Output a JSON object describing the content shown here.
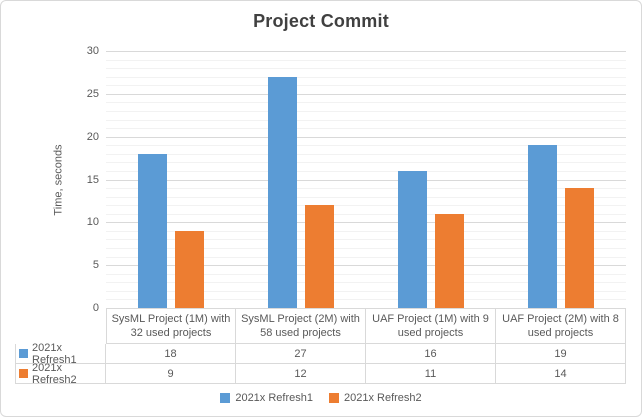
{
  "chart_data": {
    "type": "bar",
    "title": "Project Commit",
    "ylabel": "Time, seconds",
    "xlabel": "",
    "ylim": [
      0,
      30
    ],
    "yticks": [
      0,
      5,
      10,
      15,
      20,
      25,
      30
    ],
    "minor_unit": 1,
    "major_unit": 5,
    "grid": true,
    "legend_position": "bottom",
    "data_table_shown": true,
    "categories": [
      "SysML Project (1M) with 32 used projects",
      "SysML Project (2M) with 58 used projects",
      "UAF Project (1M) with 9 used projects",
      "UAF Project (2M) with 8 used projects"
    ],
    "series": [
      {
        "name": "2021x Refresh1",
        "color": "#5B9BD5",
        "values": [
          18,
          27,
          16,
          19
        ]
      },
      {
        "name": "2021x Refresh2",
        "color": "#ED7D31",
        "values": [
          9,
          12,
          11,
          14
        ]
      }
    ]
  }
}
